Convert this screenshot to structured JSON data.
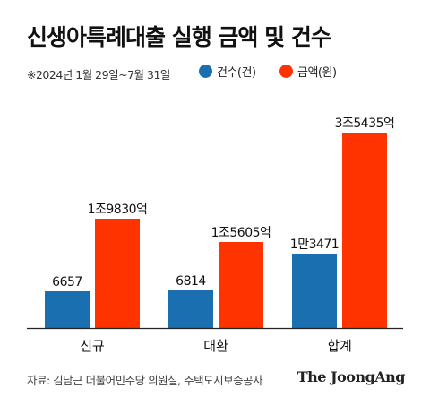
{
  "title": "신생아특례대출 실행 금액 및 건수",
  "subtitle": "※2024년 1월 29일~7월 31일",
  "legend": [
    {
      "label": "건수(건)",
      "color": "#1a6fb0"
    },
    {
      "label": "금액(원)",
      "color": "#ff3300"
    }
  ],
  "chart_data": {
    "type": "bar",
    "categories": [
      "신규",
      "대환",
      "합계"
    ],
    "series": [
      {
        "name": "건수(건)",
        "color": "#1a6fb0",
        "values": [
          6657,
          6814,
          13471
        ],
        "labels": [
          "6657",
          "6814",
          "1만3471"
        ]
      },
      {
        "name": "금액(원)",
        "color": "#ff3300",
        "values": [
          19830,
          15605,
          35435
        ],
        "labels": [
          "1조9830억",
          "1조5605억",
          "3조5435억"
        ]
      }
    ],
    "grid": false,
    "legend_position": "top"
  },
  "footer": {
    "source": "자료: 김남근 더불어민주당 의원실, 주택도시보증공사",
    "brand": "The JoongAng"
  }
}
